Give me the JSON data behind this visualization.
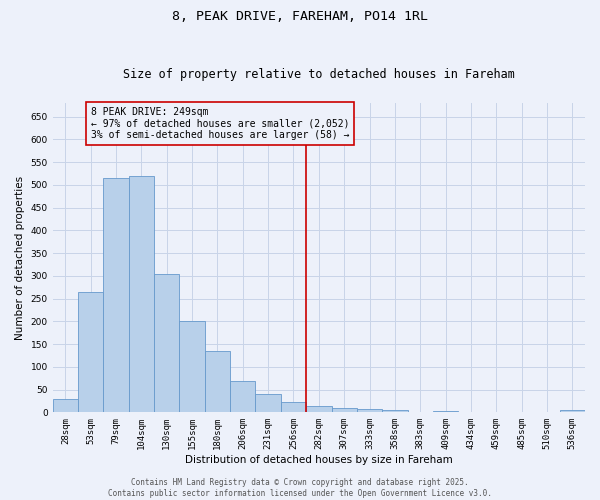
{
  "title": "8, PEAK DRIVE, FAREHAM, PO14 1RL",
  "subtitle": "Size of property relative to detached houses in Fareham",
  "xlabel": "Distribution of detached houses by size in Fareham",
  "ylabel": "Number of detached properties",
  "categories": [
    "28sqm",
    "53sqm",
    "79sqm",
    "104sqm",
    "130sqm",
    "155sqm",
    "180sqm",
    "206sqm",
    "231sqm",
    "256sqm",
    "282sqm",
    "307sqm",
    "333sqm",
    "358sqm",
    "383sqm",
    "409sqm",
    "434sqm",
    "459sqm",
    "485sqm",
    "510sqm",
    "536sqm"
  ],
  "values": [
    30,
    265,
    515,
    520,
    305,
    200,
    135,
    68,
    40,
    22,
    15,
    9,
    8,
    5,
    0,
    4,
    0,
    0,
    0,
    0,
    5
  ],
  "bar_color": "#b8d0ea",
  "bar_edge_color": "#6699cc",
  "grid_color": "#c8d4e8",
  "bg_color": "#edf1fa",
  "vline_x": 9.5,
  "vline_color": "#cc0000",
  "annotation_text": "8 PEAK DRIVE: 249sqm\n← 97% of detached houses are smaller (2,052)\n3% of semi-detached houses are larger (58) →",
  "annotation_box_color": "#cc0000",
  "footer_text": "Contains HM Land Registry data © Crown copyright and database right 2025.\nContains public sector information licensed under the Open Government Licence v3.0.",
  "ylim": [
    0,
    680
  ],
  "yticks": [
    0,
    50,
    100,
    150,
    200,
    250,
    300,
    350,
    400,
    450,
    500,
    550,
    600,
    650
  ],
  "title_fontsize": 9.5,
  "subtitle_fontsize": 8.5,
  "label_fontsize": 7.5,
  "tick_fontsize": 6.5,
  "footer_fontsize": 5.5,
  "annot_fontsize": 7.0
}
